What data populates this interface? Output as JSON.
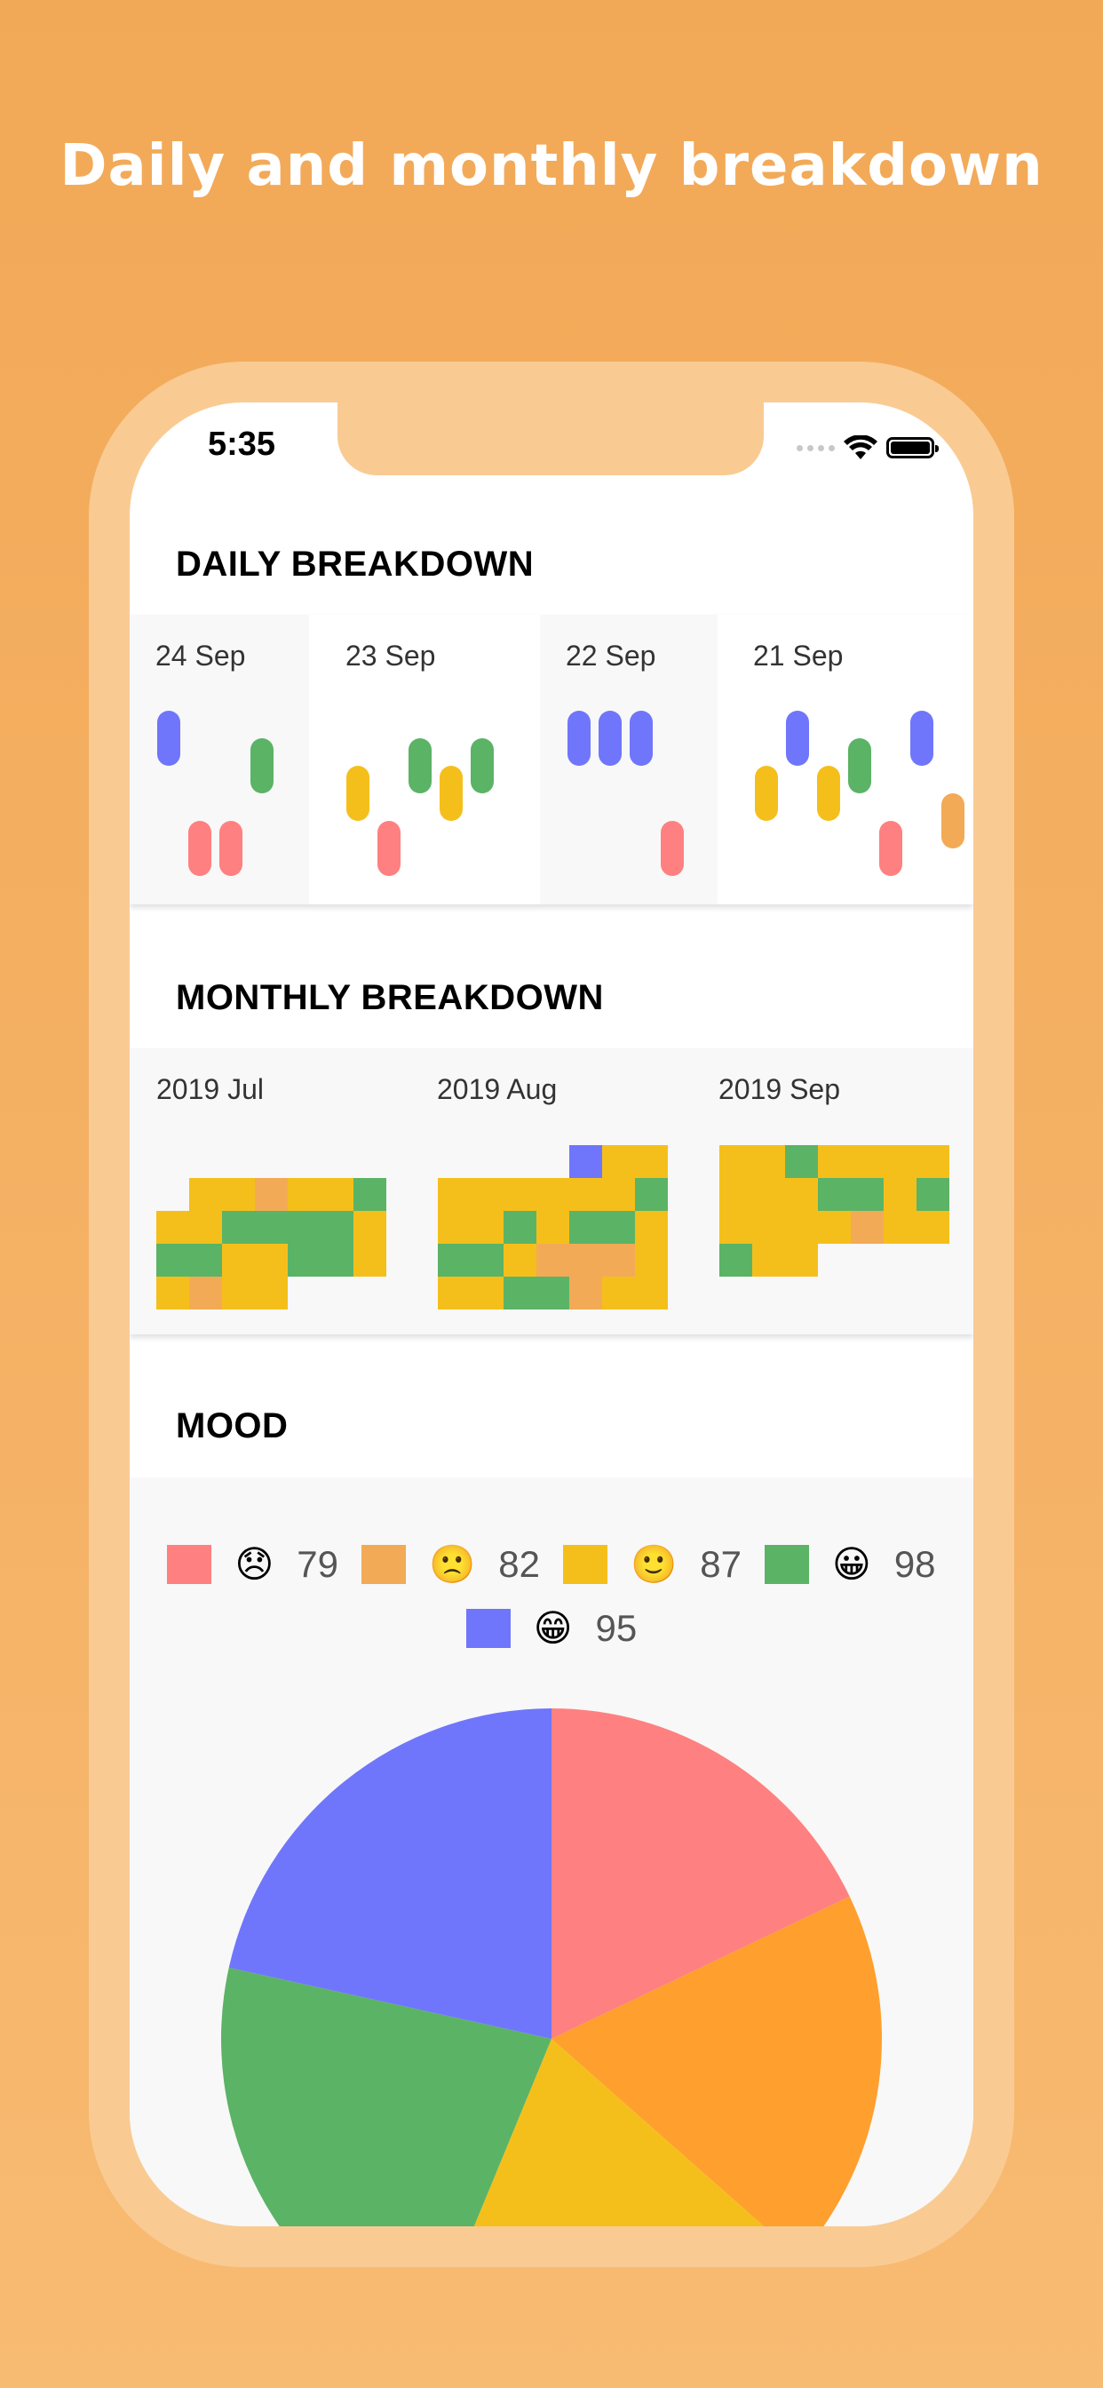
{
  "headline": "Daily and monthly breakdown",
  "status_bar": {
    "time": "5:35"
  },
  "colors": {
    "red": "#ff8080",
    "orange": "#f2aa56",
    "yellow": "#f5bf1b",
    "green": "#5bb366",
    "blue": "#6f76fb",
    "pie_orange": "#ff9f2e",
    "background_orange": "#f2a957",
    "frame": "#f9cb93"
  },
  "daily": {
    "title": "DAILY BREAKDOWN",
    "days": [
      {
        "label": "24 Sep"
      },
      {
        "label": "23 Sep"
      },
      {
        "label": "22 Sep"
      },
      {
        "label": "21 Sep"
      }
    ]
  },
  "monthly": {
    "title": "MONTHLY BREAKDOWN",
    "months": [
      {
        "label": "2019 Jul"
      },
      {
        "label": "2019 Aug"
      },
      {
        "label": "2019 Sep"
      }
    ]
  },
  "mood": {
    "title": "MOOD",
    "legend": [
      {
        "emoji": "😞",
        "count": "79"
      },
      {
        "emoji": "🙁",
        "count": "82"
      },
      {
        "emoji": "🙂",
        "count": "87"
      },
      {
        "emoji": "😀",
        "count": "98"
      },
      {
        "emoji": "😁",
        "count": "95"
      }
    ]
  },
  "chart_data": {
    "type": "pie",
    "categories": [
      "😞",
      "🙁",
      "🙂",
      "😀",
      "😁"
    ],
    "values": [
      79,
      82,
      87,
      98,
      95
    ]
  }
}
